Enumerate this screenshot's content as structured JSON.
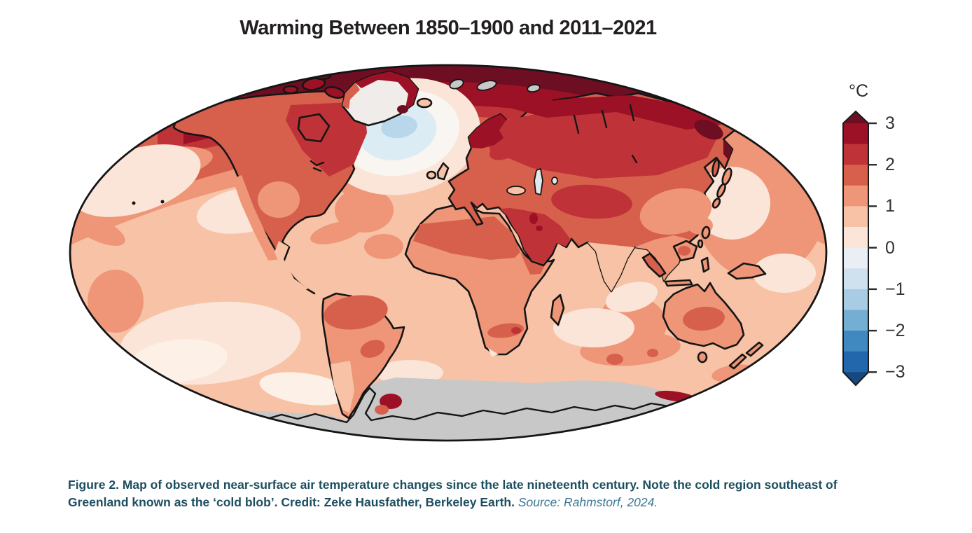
{
  "page": {
    "background": "#ffffff"
  },
  "title": "Warming Between 1850–1900 and 2011–2021",
  "colorbar": {
    "unit_label": "°C",
    "ticks": [
      "3",
      "2",
      "1",
      "0",
      "−1",
      "−2",
      "−3"
    ],
    "value_range": [
      -3,
      3
    ],
    "segment_colors_top_to_bottom": [
      "#9d1127",
      "#bf3338",
      "#d7604c",
      "#ee9677",
      "#f7c2a6",
      "#fbe5d8",
      "#e9eff4",
      "#cfe1ee",
      "#a7cce4",
      "#75aed3",
      "#3f88c0",
      "#2267ab"
    ],
    "arrow_top_color": "#6e0e23",
    "arrow_bottom_color": "#16497e",
    "tick_color": "#2a2a2a"
  },
  "palette": {
    "r0": "#fbe5d8",
    "r0l": "#fdf1e7",
    "r1": "#f7c2a6",
    "r2": "#ee9677",
    "r3": "#d7604c",
    "r4": "#bf3338",
    "r5": "#9d1127",
    "r6": "#6e0e23",
    "b1": "#cfe1ee",
    "no_data": "#c8c8c8",
    "outline": "#151515",
    "ice": "#efecea",
    "blob_ring": "#f9f5f1",
    "blob_mid": "#dcecf5",
    "blob_core": "#b9d7eb",
    "lake": "#e3e8ec"
  },
  "caption": {
    "label": "Figure 2.",
    "body": "Map of observed near-surface air temperature changes since the late nineteenth century. Note the cold region southeast of Greenland known as the ‘cold blob’. Credit: Zeke Hausfather, Berkeley Earth.",
    "source": "Source: Rahmstorf, 2024."
  }
}
